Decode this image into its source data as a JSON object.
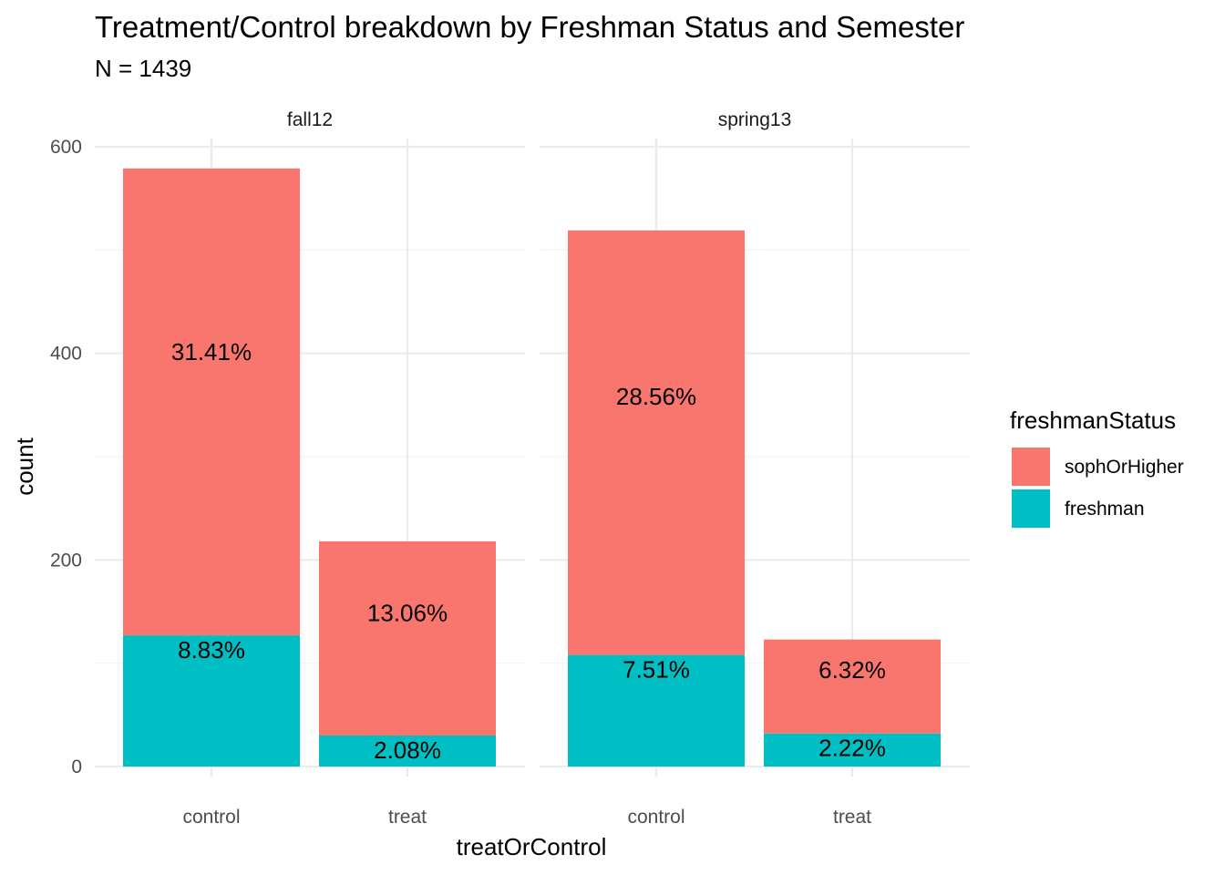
{
  "chart_data": {
    "type": "bar",
    "stacked": true,
    "title": "Treatment/Control breakdown by Freshman Status and Semester",
    "subtitle": "N = 1439",
    "xlabel": "treatOrControl",
    "ylabel": "count",
    "ylim": [
      0,
      600
    ],
    "yticks": [
      "0",
      "200",
      "400",
      "600"
    ],
    "grid": true,
    "facets": [
      "fall12",
      "spring13"
    ],
    "categories": [
      "control",
      "treat"
    ],
    "legend": {
      "title": "freshmanStatus",
      "position": "right",
      "entries": [
        "sophOrHigher",
        "freshman"
      ]
    },
    "colors": {
      "sophOrHigher": "#F8766D",
      "freshman": "#00BFC4"
    },
    "series": [
      {
        "name": "freshman",
        "values": {
          "fall12": [
            127,
            30
          ],
          "spring13": [
            108,
            32
          ]
        },
        "labels": {
          "fall12": [
            "8.83%",
            "2.08%"
          ],
          "spring13": [
            "7.51%",
            "2.22%"
          ]
        }
      },
      {
        "name": "sophOrHigher",
        "values": {
          "fall12": [
            452,
            188
          ],
          "spring13": [
            411,
            91
          ]
        },
        "labels": {
          "fall12": [
            "31.41%",
            "13.06%"
          ],
          "spring13": [
            "28.56%",
            "6.32%"
          ]
        }
      }
    ]
  }
}
